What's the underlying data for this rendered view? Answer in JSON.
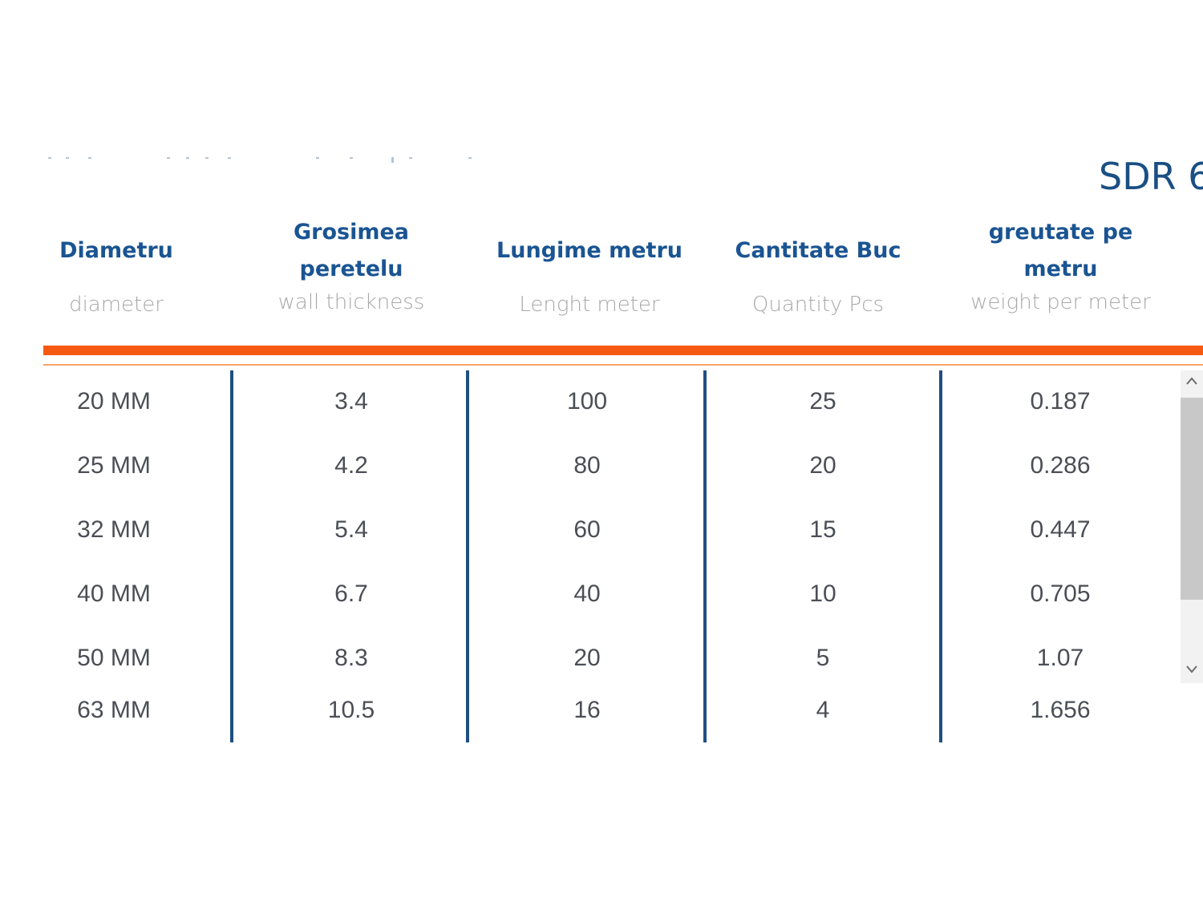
{
  "title": "SDR 6",
  "columns": [
    {
      "ro": "Diametru",
      "en": "diameter"
    },
    {
      "ro": "Grosimea peretelu",
      "en": "wall thickness"
    },
    {
      "ro": "Lungime metru",
      "en": "Lenght meter"
    },
    {
      "ro": "Cantitate Buc",
      "en": "Quantity Pcs"
    },
    {
      "ro": "greutate pe metru",
      "en": "weight per meter"
    }
  ],
  "rows": [
    [
      "20 MM",
      "3.4",
      "100",
      "25",
      "0.187"
    ],
    [
      "25 MM",
      "4.2",
      "80",
      "20",
      "0.286"
    ],
    [
      "32 MM",
      "5.4",
      "60",
      "15",
      "0.447"
    ],
    [
      "40 MM",
      "6.7",
      "40",
      "10",
      "0.705"
    ],
    [
      "50 MM",
      "8.3",
      "20",
      "5",
      "1.07"
    ],
    [
      "63 MM",
      "10.5",
      "16",
      "4",
      "1.656"
    ]
  ],
  "colors": {
    "title": "#1a4f84",
    "header_text": "#1a5492",
    "subheader_text": "#a8a8a8",
    "accent_bar": "#f65a12",
    "column_divider": "#1f4f82",
    "cell_text": "#4b4e55"
  },
  "icons": {
    "scroll_up": "chevron-up-icon",
    "scroll_down": "chevron-down-icon"
  }
}
